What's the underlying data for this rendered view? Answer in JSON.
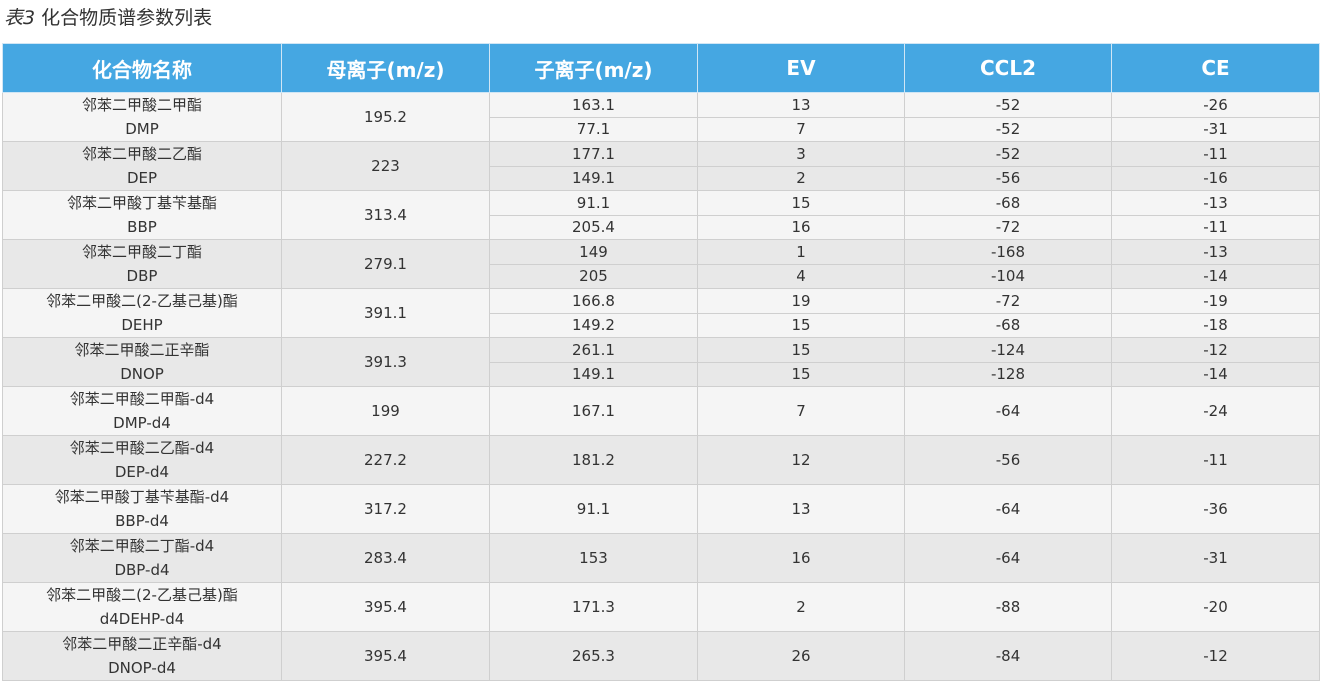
{
  "caption": {
    "label": "表3",
    "text": "化合物质谱参数列表"
  },
  "headers": [
    "化合物名称",
    "母离子(m/z)",
    "子离子(m/z)",
    "EV",
    "CCL2",
    "CE"
  ],
  "compounds": [
    {
      "name_cn": "邻苯二甲酸二甲酯",
      "abbr": "DMP",
      "parent": "195.2",
      "ions": [
        {
          "daughter": "163.1",
          "ev": "13",
          "ccl2": "-52",
          "ce": "-26"
        },
        {
          "daughter": "77.1",
          "ev": "7",
          "ccl2": "-52",
          "ce": "-31"
        }
      ]
    },
    {
      "name_cn": "邻苯二甲酸二乙酯",
      "abbr": "DEP",
      "parent": "223",
      "ions": [
        {
          "daughter": "177.1",
          "ev": "3",
          "ccl2": "-52",
          "ce": "-11"
        },
        {
          "daughter": "149.1",
          "ev": "2",
          "ccl2": "-56",
          "ce": "-16"
        }
      ]
    },
    {
      "name_cn": "邻苯二甲酸丁基苄基酯",
      "abbr": "BBP",
      "parent": "313.4",
      "ions": [
        {
          "daughter": "91.1",
          "ev": "15",
          "ccl2": "-68",
          "ce": "-13"
        },
        {
          "daughter": "205.4",
          "ev": "16",
          "ccl2": "-72",
          "ce": "-11"
        }
      ]
    },
    {
      "name_cn": "邻苯二甲酸二丁酯",
      "abbr": "DBP",
      "parent": "279.1",
      "ions": [
        {
          "daughter": "149",
          "ev": "1",
          "ccl2": "-168",
          "ce": "-13"
        },
        {
          "daughter": "205",
          "ev": "4",
          "ccl2": "-104",
          "ce": "-14"
        }
      ]
    },
    {
      "name_cn": "邻苯二甲酸二(2-乙基己基)酯",
      "abbr": "DEHP",
      "parent": "391.1",
      "ions": [
        {
          "daughter": "166.8",
          "ev": "19",
          "ccl2": "-72",
          "ce": "-19"
        },
        {
          "daughter": "149.2",
          "ev": "15",
          "ccl2": "-68",
          "ce": "-18"
        }
      ]
    },
    {
      "name_cn": "邻苯二甲酸二正辛酯",
      "abbr": "DNOP",
      "parent": "391.3",
      "ions": [
        {
          "daughter": "261.1",
          "ev": "15",
          "ccl2": "-124",
          "ce": "-12"
        },
        {
          "daughter": "149.1",
          "ev": "15",
          "ccl2": "-128",
          "ce": "-14"
        }
      ]
    },
    {
      "name_cn": "邻苯二甲酸二甲酯-d4",
      "abbr": "DMP-d4",
      "parent": "199",
      "ions": [
        {
          "daughter": "167.1",
          "ev": "7",
          "ccl2": "-64",
          "ce": "-24"
        }
      ]
    },
    {
      "name_cn": "邻苯二甲酸二乙酯-d4",
      "abbr": "DEP-d4",
      "parent": "227.2",
      "ions": [
        {
          "daughter": "181.2",
          "ev": "12",
          "ccl2": "-56",
          "ce": "-11"
        }
      ]
    },
    {
      "name_cn": "邻苯二甲酸丁基苄基酯-d4",
      "abbr": "BBP-d4",
      "parent": "317.2",
      "ions": [
        {
          "daughter": "91.1",
          "ev": "13",
          "ccl2": "-64",
          "ce": "-36"
        }
      ]
    },
    {
      "name_cn": "邻苯二甲酸二丁酯-d4",
      "abbr": "DBP-d4",
      "parent": "283.4",
      "ions": [
        {
          "daughter": "153",
          "ev": "16",
          "ccl2": "-64",
          "ce": "-31"
        }
      ]
    },
    {
      "name_cn": "邻苯二甲酸二(2-乙基己基)酯",
      "abbr": "d4DEHP-d4",
      "parent": "395.4",
      "ions": [
        {
          "daughter": "171.3",
          "ev": "2",
          "ccl2": "-88",
          "ce": "-20"
        }
      ]
    },
    {
      "name_cn": "邻苯二甲酸二正辛酯-d4",
      "abbr": "DNOP-d4",
      "parent": "395.4",
      "ions": [
        {
          "daughter": "265.3",
          "ev": "26",
          "ccl2": "-84",
          "ce": "-12"
        }
      ]
    }
  ]
}
